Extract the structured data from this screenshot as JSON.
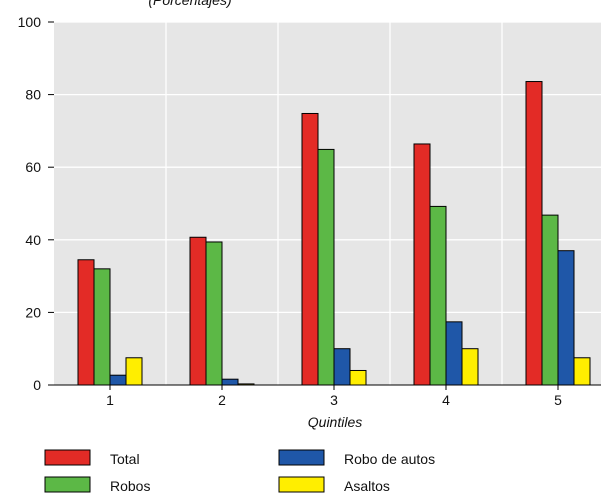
{
  "chart_data": {
    "type": "bar",
    "subtitle": "(Porcentajes)",
    "xlabel": "Quintiles",
    "ylabel": "",
    "ylim": [
      0,
      100
    ],
    "yticks": [
      0,
      20,
      40,
      60,
      80,
      100
    ],
    "grid": true,
    "legend_placement": "bottom",
    "categories": [
      "1",
      "2",
      "3",
      "4",
      "5"
    ],
    "series": [
      {
        "name": "Total",
        "color": "#e32b26",
        "values": [
          34.5,
          40.7,
          74.8,
          66.4,
          83.6
        ]
      },
      {
        "name": "Robos",
        "color": "#5cb846",
        "values": [
          32.0,
          39.4,
          64.9,
          49.2,
          46.8
        ]
      },
      {
        "name": "Robo de autos",
        "color": "#1f57a8",
        "values": [
          2.7,
          1.6,
          10.0,
          17.4,
          37.0
        ]
      },
      {
        "name": "Asaltos",
        "color": "#ffee00",
        "values": [
          7.5,
          0.3,
          4.0,
          10.0,
          7.5
        ]
      }
    ]
  }
}
